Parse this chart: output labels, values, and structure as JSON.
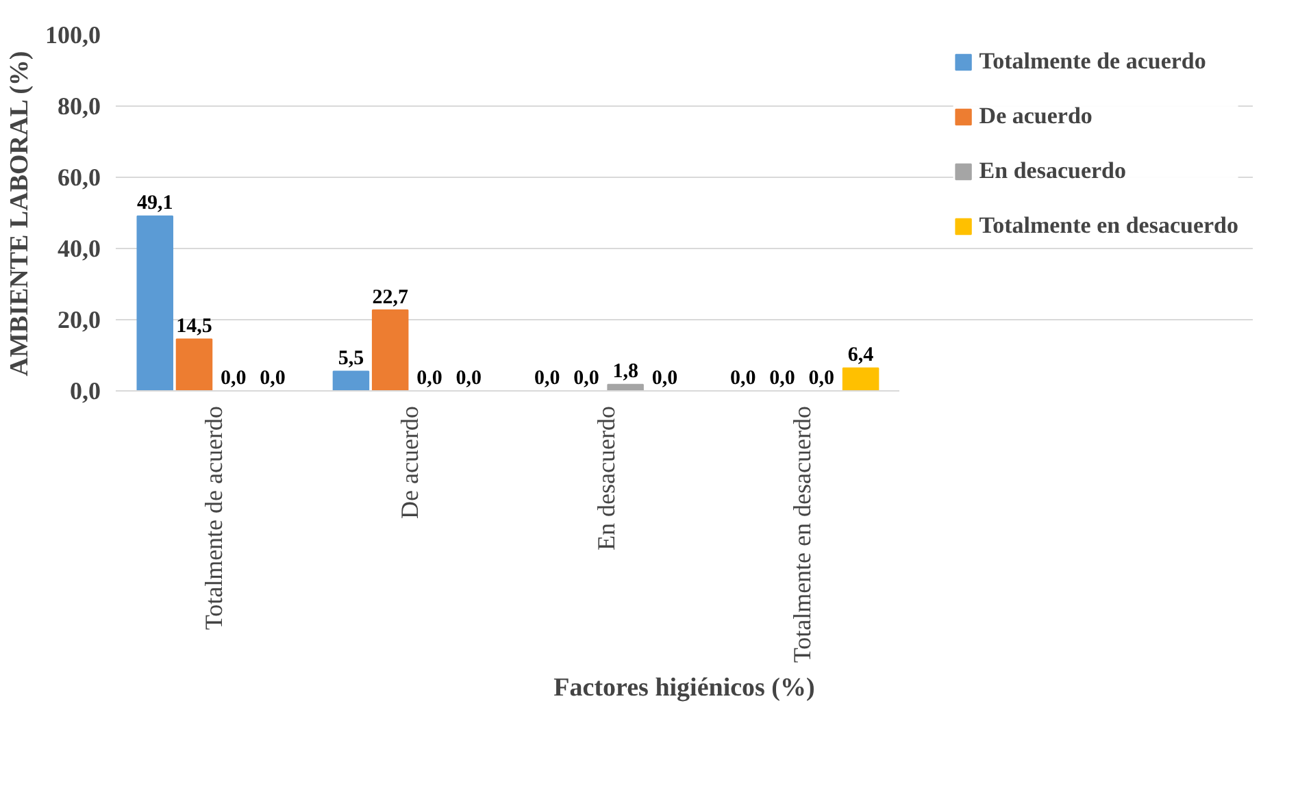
{
  "chart_data": {
    "type": "bar",
    "xlabel": "Factores higiénicos (%)",
    "ylabel": "AMBIENTE LABORAL (%)",
    "categories": [
      "Totalmente de acuerdo",
      "De acuerdo",
      "En desacuerdo",
      "Totalmente en desacuerdo"
    ],
    "series": [
      {
        "name": "Totalmente de acuerdo",
        "color": "#5b9bd5",
        "values": [
          49.1,
          5.5,
          0.0,
          0.0
        ],
        "value_labels": [
          "49,1",
          "5,5",
          "0,0",
          "0,0"
        ]
      },
      {
        "name": "De acuerdo",
        "color": "#ed7d31",
        "values": [
          14.5,
          22.7,
          0.0,
          0.0
        ],
        "value_labels": [
          "14,5",
          "22,7",
          "0,0",
          "0,0"
        ]
      },
      {
        "name": "En desacuerdo",
        "color": "#a5a5a5",
        "values": [
          0.0,
          0.0,
          1.8,
          0.0
        ],
        "value_labels": [
          "0,0",
          "0,0",
          "1,8",
          "0,0"
        ]
      },
      {
        "name": "Totalmente en desacuerdo",
        "color": "#ffc000",
        "values": [
          0.0,
          0.0,
          0.0,
          6.4
        ],
        "value_labels": [
          "0,0",
          "0,0",
          "0,0",
          "6,4"
        ]
      }
    ],
    "ylim": [
      0,
      100
    ],
    "yticks": [
      {
        "value": 0,
        "label": "0,0"
      },
      {
        "value": 20,
        "label": "20,0"
      },
      {
        "value": 40,
        "label": "40,0"
      },
      {
        "value": 60,
        "label": "60,0"
      },
      {
        "value": 80,
        "label": "80,0"
      },
      {
        "value": 100,
        "label": "100,0"
      }
    ],
    "grid": "y",
    "legend": "right"
  }
}
